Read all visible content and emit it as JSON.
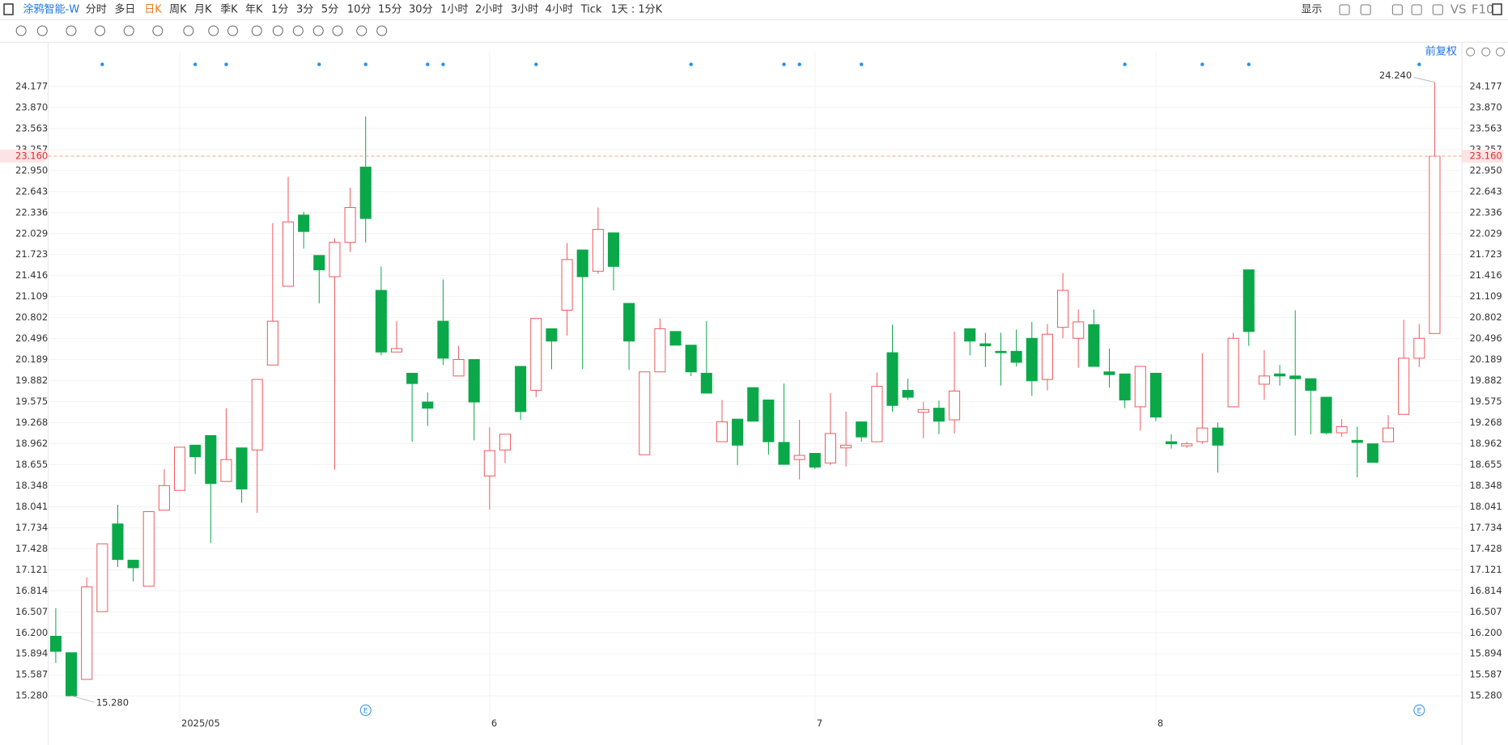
{
  "toolbar": {
    "symbol": "涂鸦智能-W",
    "periods": [
      "分时",
      "多日",
      "日K",
      "周K",
      "月K",
      "季K",
      "年K",
      "1分",
      "3分",
      "5分",
      "10分",
      "15分",
      "30分",
      "1小时",
      "2小时",
      "3小时",
      "4小时",
      "Tick",
      "1天 : 1分K"
    ],
    "right": [
      "显示",
      "VS",
      "F10"
    ]
  },
  "adjust_label": "前复权",
  "event_icon_label": "E",
  "chart_data": {
    "type": "candlestick",
    "categories": [
      null,
      null,
      null,
      null,
      null,
      null,
      null,
      null,
      "2025/05",
      null,
      null,
      null,
      null,
      null,
      null,
      null,
      null,
      null,
      null,
      null,
      null,
      null,
      null,
      null,
      null,
      null,
      null,
      null,
      "6",
      null,
      null,
      null,
      null,
      null,
      null,
      null,
      null,
      null,
      null,
      null,
      null,
      null,
      null,
      null,
      null,
      null,
      null,
      null,
      null,
      "7",
      null,
      null,
      null,
      null,
      null,
      null,
      null,
      null,
      null,
      null,
      null,
      null,
      null,
      null,
      null,
      null,
      null,
      null,
      null,
      null,
      null,
      "8",
      null,
      null,
      null,
      null,
      null,
      null,
      null,
      null,
      null,
      null,
      null,
      null,
      null,
      null,
      null,
      null,
      null,
      null
    ],
    "open": [
      16.15,
      15.91,
      15.52,
      16.51,
      17.79,
      17.26,
      16.88,
      17.99,
      18.28,
      18.94,
      19.08,
      18.41,
      18.9,
      18.87,
      20.11,
      21.26,
      22.3,
      21.71,
      21.4,
      21.9,
      23.0,
      21.2,
      20.3,
      19.99,
      19.57,
      20.75,
      19.95,
      20.19,
      18.49,
      18.87,
      20.09,
      19.74,
      20.64,
      20.91,
      21.79,
      21.48,
      22.04,
      21.01,
      18.8,
      20.01,
      20.6,
      20.4,
      19.99,
      18.99,
      19.32,
      19.78,
      19.6,
      18.98,
      18.73,
      18.82,
      18.68,
      18.9,
      19.28,
      18.99,
      20.29,
      19.74,
      19.42,
      19.48,
      19.31,
      20.64,
      20.42,
      20.31,
      20.31,
      20.5,
      19.9,
      20.66,
      20.5,
      20.7,
      20.01,
      19.98,
      19.5,
      19.99,
      18.99,
      18.93,
      18.99,
      19.19,
      19.5,
      21.5,
      19.83,
      19.98,
      19.95,
      19.91,
      19.64,
      19.12,
      19.01,
      18.96,
      18.99,
      19.39,
      20.21,
      20.57
    ],
    "high": [
      16.56,
      15.91,
      17.01,
      17.5,
      18.07,
      17.26,
      17.97,
      18.59,
      18.91,
      18.94,
      19.08,
      19.48,
      18.9,
      19.9,
      22.18,
      22.86,
      22.35,
      21.71,
      21.96,
      22.7,
      23.74,
      21.55,
      20.75,
      19.99,
      19.71,
      21.36,
      20.39,
      20.19,
      19.2,
      19.1,
      20.09,
      20.79,
      20.64,
      21.89,
      21.79,
      22.41,
      22.04,
      21.01,
      20.01,
      20.79,
      20.6,
      20.4,
      20.75,
      19.6,
      19.32,
      19.78,
      19.6,
      19.84,
      19.31,
      18.82,
      19.7,
      19.43,
      19.28,
      20.0,
      20.7,
      19.91,
      19.57,
      19.59,
      20.6,
      20.64,
      20.58,
      20.58,
      20.63,
      20.74,
      20.71,
      21.45,
      20.92,
      20.92,
      20.35,
      19.98,
      20.09,
      19.99,
      19.1,
      18.99,
      20.28,
      19.27,
      20.58,
      21.5,
      20.33,
      20.11,
      20.91,
      19.91,
      19.64,
      19.32,
      19.21,
      18.96,
      19.38,
      20.77,
      20.71,
      24.24
    ],
    "low": [
      15.76,
      15.28,
      15.52,
      16.51,
      17.16,
      16.95,
      16.88,
      17.99,
      18.28,
      18.52,
      17.51,
      18.41,
      18.1,
      17.95,
      20.11,
      21.26,
      21.81,
      21.01,
      18.58,
      21.76,
      21.9,
      20.25,
      20.3,
      18.99,
      19.22,
      20.11,
      19.95,
      19.01,
      18.0,
      18.68,
      19.31,
      19.64,
      20.05,
      20.54,
      20.05,
      21.44,
      21.2,
      20.04,
      18.8,
      20.01,
      20.4,
      19.95,
      19.7,
      18.99,
      18.65,
      19.29,
      18.8,
      18.66,
      18.44,
      18.59,
      18.65,
      18.63,
      18.99,
      18.99,
      19.43,
      19.6,
      19.04,
      19.1,
      19.11,
      20.25,
      20.08,
      19.81,
      20.09,
      19.66,
      19.74,
      20.5,
      20.07,
      20.09,
      19.78,
      19.48,
      19.15,
      19.29,
      18.89,
      18.9,
      18.96,
      18.54,
      19.5,
      20.39,
      19.6,
      19.81,
      19.08,
      19.1,
      19.1,
      19.06,
      18.47,
      18.69,
      18.99,
      19.39,
      20.08,
      20.57
    ],
    "close": [
      15.93,
      15.28,
      16.87,
      17.5,
      17.27,
      17.15,
      17.97,
      18.35,
      18.91,
      18.77,
      18.38,
      18.73,
      18.3,
      19.9,
      20.75,
      22.2,
      22.06,
      21.5,
      21.9,
      22.41,
      22.25,
      20.3,
      20.35,
      19.84,
      19.48,
      20.21,
      20.19,
      19.57,
      18.86,
      19.1,
      19.43,
      20.79,
      20.46,
      21.65,
      21.4,
      22.09,
      21.55,
      20.46,
      20.01,
      20.64,
      20.4,
      20.01,
      19.7,
      19.28,
      18.94,
      19.29,
      18.99,
      18.66,
      18.79,
      18.62,
      19.11,
      18.94,
      19.06,
      19.8,
      19.52,
      19.64,
      19.46,
      19.29,
      19.73,
      20.46,
      20.39,
      20.29,
      20.15,
      19.88,
      20.56,
      21.2,
      20.74,
      20.09,
      19.97,
      19.6,
      20.09,
      19.35,
      18.96,
      18.96,
      19.19,
      18.94,
      20.5,
      20.6,
      19.95,
      19.95,
      19.91,
      19.74,
      19.12,
      19.21,
      18.98,
      18.69,
      19.19,
      20.21,
      20.5,
      23.16
    ],
    "up_color": "#ee5a5f",
    "down_color": "#0ba84a",
    "ylim": [
      14.915,
      24.57
    ],
    "yticks": [
      {
        "value": 15.28,
        "label": "15.280"
      },
      {
        "value": 15.587,
        "label": "15.587"
      },
      {
        "value": 15.894,
        "label": "15.894"
      },
      {
        "value": 16.2,
        "label": "16.200"
      },
      {
        "value": 16.507,
        "label": "16.507"
      },
      {
        "value": 16.814,
        "label": "16.814"
      },
      {
        "value": 17.121,
        "label": "17.121"
      },
      {
        "value": 17.428,
        "label": "17.428"
      },
      {
        "value": 17.734,
        "label": "17.734"
      },
      {
        "value": 18.041,
        "label": "18.041"
      },
      {
        "value": 18.348,
        "label": "18.348"
      },
      {
        "value": 18.655,
        "label": "18.655"
      },
      {
        "value": 18.962,
        "label": "18.962"
      },
      {
        "value": 19.268,
        "label": "19.268"
      },
      {
        "value": 19.575,
        "label": "19.575"
      },
      {
        "value": 19.882,
        "label": "19.882"
      },
      {
        "value": 20.189,
        "label": "20.189"
      },
      {
        "value": 20.496,
        "label": "20.496"
      },
      {
        "value": 20.802,
        "label": "20.802"
      },
      {
        "value": 21.109,
        "label": "21.109"
      },
      {
        "value": 21.416,
        "label": "21.416"
      },
      {
        "value": 21.723,
        "label": "21.723"
      },
      {
        "value": 22.029,
        "label": "22.029"
      },
      {
        "value": 22.336,
        "label": "22.336"
      },
      {
        "value": 22.643,
        "label": "22.643"
      },
      {
        "value": 22.95,
        "label": "22.950"
      },
      {
        "value": 23.257,
        "label": "23.257"
      },
      {
        "value": 23.563,
        "label": "23.563"
      },
      {
        "value": 23.87,
        "label": "23.870"
      },
      {
        "value": 24.177,
        "label": "24.177"
      }
    ],
    "grid": true,
    "last_price": {
      "value": 23.16,
      "label": "23.160"
    },
    "max_annotation": {
      "value": 24.24,
      "label": "24.240"
    },
    "min_annotation": {
      "value": 15.28,
      "label": "15.280"
    }
  }
}
